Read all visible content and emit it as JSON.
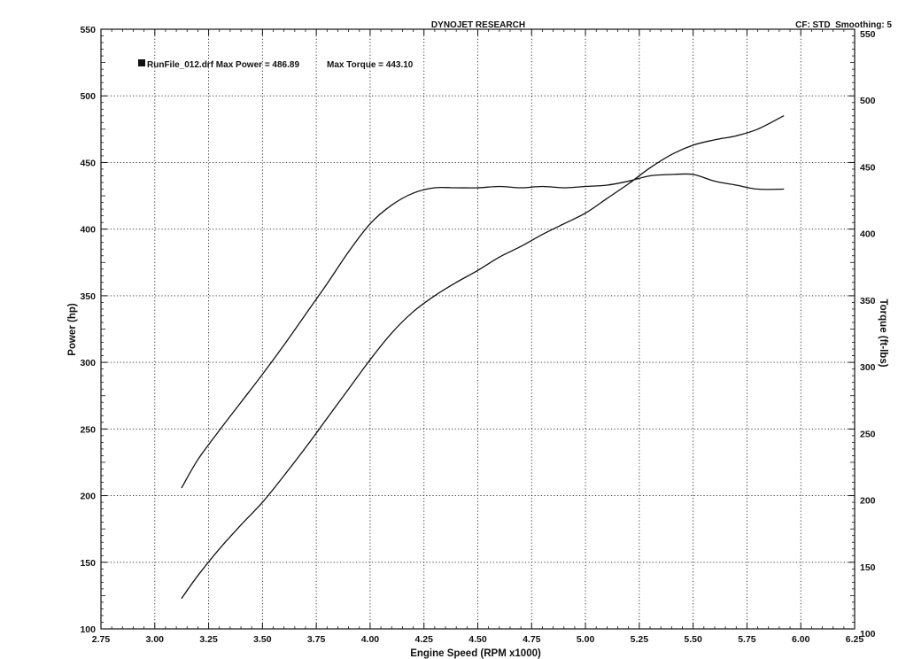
{
  "header": {
    "title": "DYNOJET RESEARCH",
    "settings": "CF: STD  Smoothing: 5"
  },
  "legend": {
    "run_label": "RunFile_012.drf Max Power = 486.89",
    "torque_label": "Max Torque = 443.10"
  },
  "colors": {
    "line": "#111111",
    "grid": "#222222",
    "background": "#ffffff"
  },
  "chart_data": {
    "type": "line",
    "title": "DYNOJET RESEARCH",
    "xlabel": "Engine Speed (RPM x1000)",
    "ylabel": "Power (hp)",
    "y2label": "Torque (ft-lbs)",
    "xlim": [
      2.75,
      6.25
    ],
    "ylim": [
      100,
      550
    ],
    "y2lim": [
      100,
      550
    ],
    "x_ticks": [
      "2.75",
      "3.00",
      "3.25",
      "3.50",
      "3.75",
      "4.00",
      "4.25",
      "4.50",
      "4.75",
      "5.00",
      "5.25",
      "5.50",
      "5.75",
      "6.00",
      "6.25"
    ],
    "y_ticks": [
      "100",
      "150",
      "200",
      "250",
      "300",
      "350",
      "400",
      "450",
      "500",
      "550"
    ],
    "y2_ticks": [
      "100",
      "150",
      "200",
      "250",
      "300",
      "350",
      "400",
      "450",
      "500",
      "550"
    ],
    "grid": true,
    "legend_position": "top-left",
    "series": [
      {
        "name": "Power",
        "axis": "left",
        "x": [
          3.125,
          3.2,
          3.3,
          3.4,
          3.5,
          3.6,
          3.7,
          3.8,
          3.9,
          4.0,
          4.1,
          4.2,
          4.3,
          4.4,
          4.5,
          4.6,
          4.7,
          4.8,
          4.9,
          5.0,
          5.1,
          5.2,
          5.3,
          5.4,
          5.5,
          5.6,
          5.7,
          5.8,
          5.92
        ],
        "y": [
          123,
          140,
          160,
          178,
          195,
          215,
          236,
          258,
          280,
          302,
          322,
          338,
          350,
          360,
          369,
          379,
          387,
          396,
          404,
          412,
          423,
          434,
          446,
          456,
          463,
          467,
          470,
          475,
          485
        ]
      },
      {
        "name": "Torque",
        "axis": "right",
        "x": [
          3.125,
          3.2,
          3.3,
          3.4,
          3.5,
          3.6,
          3.7,
          3.8,
          3.9,
          4.0,
          4.1,
          4.2,
          4.3,
          4.4,
          4.5,
          4.6,
          4.7,
          4.8,
          4.9,
          5.0,
          5.1,
          5.2,
          5.3,
          5.4,
          5.5,
          5.6,
          5.7,
          5.8,
          5.92
        ],
        "y": [
          206,
          227,
          249,
          270,
          291,
          313,
          336,
          359,
          383,
          404,
          418,
          427,
          431,
          431,
          431,
          432,
          431,
          432,
          431,
          432,
          433,
          436,
          440,
          441,
          441,
          436,
          433,
          430,
          430
        ]
      }
    ]
  }
}
